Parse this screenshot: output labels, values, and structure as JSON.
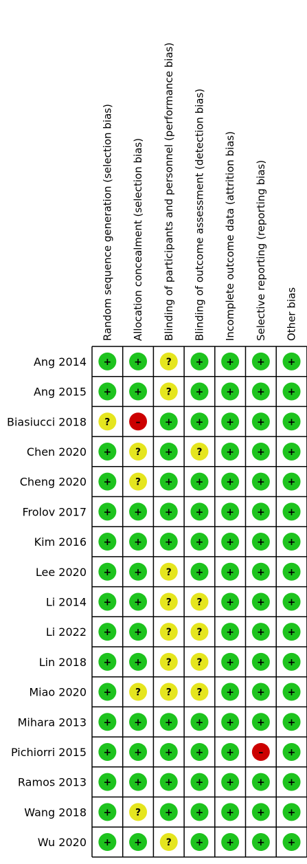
{
  "chart_data": {
    "type": "table",
    "domains": [
      "Random sequence generation (selection bias)",
      "Allocation concealment (selection bias)",
      "Blinding of participants and personnel (performance bias)",
      "Blinding of outcome assessment (detection bias)",
      "Incomplete outcome data (attrition bias)",
      "Selective reporting (reporting bias)",
      "Other bias"
    ],
    "studies": [
      "Ang 2014",
      "Ang 2015",
      "Biasiucci 2018",
      "Chen 2020",
      "Cheng 2020",
      "Frolov 2017",
      "Kim 2016",
      "Lee 2020",
      "Li 2014",
      "Li 2022",
      "Lin 2018",
      "Miao 2020",
      "Mihara 2013",
      "Pichiorri 2015",
      "Ramos 2013",
      "Wang 2018",
      "Wu 2020"
    ],
    "judgements": [
      [
        "low",
        "low",
        "unclear",
        "low",
        "low",
        "low",
        "low"
      ],
      [
        "low",
        "low",
        "unclear",
        "low",
        "low",
        "low",
        "low"
      ],
      [
        "unclear",
        "high",
        "low",
        "low",
        "low",
        "low",
        "low"
      ],
      [
        "low",
        "unclear",
        "low",
        "unclear",
        "low",
        "low",
        "low"
      ],
      [
        "low",
        "unclear",
        "low",
        "low",
        "low",
        "low",
        "low"
      ],
      [
        "low",
        "low",
        "low",
        "low",
        "low",
        "low",
        "low"
      ],
      [
        "low",
        "low",
        "low",
        "low",
        "low",
        "low",
        "low"
      ],
      [
        "low",
        "low",
        "unclear",
        "low",
        "low",
        "low",
        "low"
      ],
      [
        "low",
        "low",
        "unclear",
        "unclear",
        "low",
        "low",
        "low"
      ],
      [
        "low",
        "low",
        "unclear",
        "unclear",
        "low",
        "low",
        "low"
      ],
      [
        "low",
        "low",
        "unclear",
        "unclear",
        "low",
        "low",
        "low"
      ],
      [
        "low",
        "unclear",
        "unclear",
        "unclear",
        "low",
        "low",
        "low"
      ],
      [
        "low",
        "low",
        "low",
        "low",
        "low",
        "low",
        "low"
      ],
      [
        "low",
        "low",
        "low",
        "low",
        "low",
        "high",
        "low"
      ],
      [
        "low",
        "low",
        "low",
        "low",
        "low",
        "low",
        "low"
      ],
      [
        "low",
        "unclear",
        "low",
        "low",
        "low",
        "low",
        "low"
      ],
      [
        "low",
        "low",
        "unclear",
        "low",
        "low",
        "low",
        "low"
      ]
    ],
    "symbols": {
      "low": "+",
      "unclear": "?",
      "high": "–"
    },
    "colors": {
      "low": "#1ec31e",
      "unclear": "#e5e51f",
      "high": "#cc0000",
      "grid": "#000000"
    }
  }
}
